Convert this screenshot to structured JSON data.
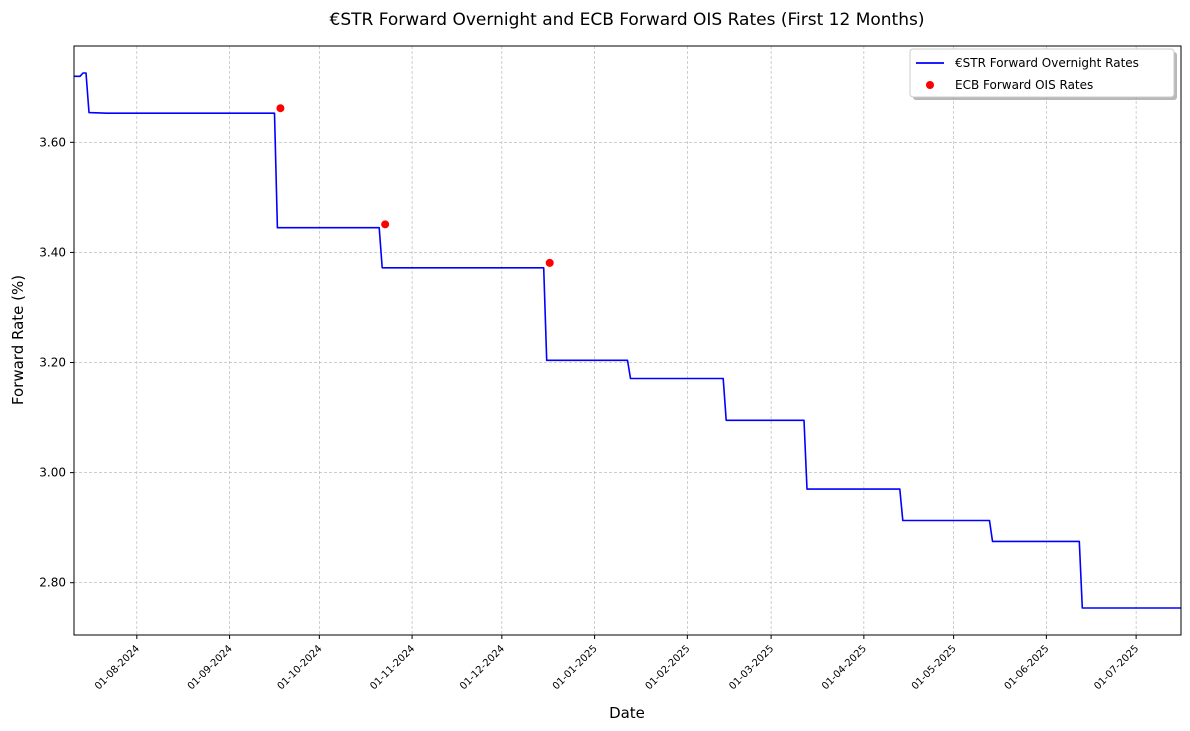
{
  "chart_data": {
    "type": "line",
    "title": "€STR Forward Overnight and ECB Forward OIS Rates (First 12 Months)",
    "xlabel": "Date",
    "ylabel": "Forward Rate (%)",
    "xlim": [
      "2024-07-11",
      "2025-07-16"
    ],
    "ylim": [
      2.705,
      3.775
    ],
    "y_ticks": [
      "2.80",
      "3.00",
      "3.20",
      "3.40",
      "3.60"
    ],
    "x_ticks": [
      "01-08-2024",
      "01-09-2024",
      "01-10-2024",
      "01-11-2024",
      "01-12-2024",
      "01-01-2025",
      "01-02-2025",
      "01-03-2025",
      "01-04-2025",
      "01-05-2025",
      "01-06-2025",
      "01-07-2025"
    ],
    "grid": true,
    "legend_position": "top-right",
    "series": [
      {
        "name": "€STR Forward Overnight Rates",
        "kind": "line",
        "color": "#0000ff",
        "points": [
          [
            "2024-07-11",
            3.72
          ],
          [
            "2024-07-13",
            3.72
          ],
          [
            "2024-07-14",
            3.726
          ],
          [
            "2024-07-15",
            3.726
          ],
          [
            "2024-07-16",
            3.654
          ],
          [
            "2024-07-22",
            3.653
          ],
          [
            "2024-09-16",
            3.653
          ],
          [
            "2024-09-17",
            3.445
          ],
          [
            "2024-10-21",
            3.445
          ],
          [
            "2024-10-22",
            3.372
          ],
          [
            "2024-12-15",
            3.372
          ],
          [
            "2024-12-16",
            3.204
          ],
          [
            "2025-01-12",
            3.204
          ],
          [
            "2025-01-13",
            3.171
          ],
          [
            "2025-02-13",
            3.171
          ],
          [
            "2025-02-14",
            3.095
          ],
          [
            "2025-03-12",
            3.095
          ],
          [
            "2025-03-13",
            2.97
          ],
          [
            "2025-04-13",
            2.97
          ],
          [
            "2025-04-14",
            2.913
          ],
          [
            "2025-05-13",
            2.913
          ],
          [
            "2025-05-14",
            2.875
          ],
          [
            "2025-06-12",
            2.875
          ],
          [
            "2025-06-13",
            2.754
          ],
          [
            "2025-07-16",
            2.754
          ]
        ]
      },
      {
        "name": "ECB Forward OIS Rates",
        "kind": "scatter",
        "color": "#ff0000",
        "points": [
          [
            "2024-09-18",
            3.662
          ],
          [
            "2024-10-23",
            3.451
          ],
          [
            "2024-12-17",
            3.381
          ]
        ]
      }
    ]
  }
}
